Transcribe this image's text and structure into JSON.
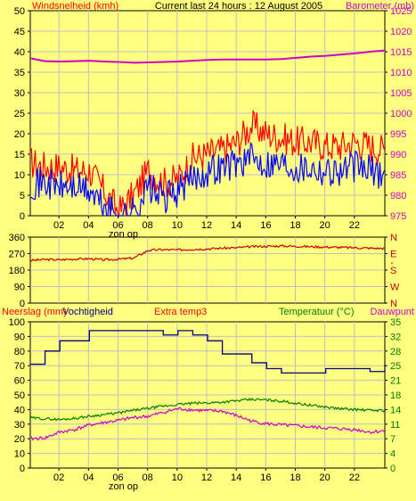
{
  "colors": {
    "background": "#ffff80",
    "grid": "#c0c0c0",
    "wind": "#ff0000",
    "gust": "#0000ff",
    "barometer": "#cc00cc",
    "winddir": "#cc0000",
    "humidity": "#000080",
    "temperature": "#008000",
    "dewpoint": "#cc00cc",
    "text": "#000000"
  },
  "header": {
    "left": "Windsnelheid (kmh)",
    "center": "Current last 24 hours : 12 August 2005",
    "right": "Barometer (mb)"
  },
  "bottom_header": {
    "rain": "Neerslag (mm)",
    "humidity": "Vochtigheid",
    "extra": "Extra temp3",
    "temp": "Temperatuur (°C)",
    "dew": "Dauwpunt"
  },
  "hour_labels": [
    "02",
    "04",
    "06",
    "08",
    "10",
    "12",
    "14",
    "16",
    "18",
    "20",
    "22"
  ],
  "sunrise_label": "zon op",
  "chart_data": [
    {
      "type": "line",
      "title": "Windsnelheid (kmh) / Barometer (mb)",
      "ylabel": "Windsnelheid (kmh)",
      "y2label": "Barometer (mb)",
      "ylim": [
        0,
        50
      ],
      "y2lim": [
        975,
        1025
      ],
      "yticks": [
        "0",
        "5",
        "10",
        "15",
        "20",
        "25",
        "30",
        "35",
        "40",
        "45",
        "50"
      ],
      "y2ticks": [
        "975",
        "980",
        "985",
        "990",
        "995",
        "1000",
        "1005",
        "1010",
        "1015",
        "1020",
        "1025"
      ],
      "x_hours": [
        0,
        1,
        2,
        3,
        4,
        5,
        6,
        7,
        8,
        9,
        10,
        11,
        12,
        13,
        14,
        15,
        16,
        17,
        18,
        19,
        20,
        21,
        22,
        23,
        24
      ],
      "series": [
        {
          "name": "Windsnelheid (kmh)",
          "values": [
            13,
            12,
            12,
            11,
            11,
            6,
            1,
            5,
            11,
            8,
            9,
            14,
            15,
            16,
            18,
            22,
            20,
            19,
            18,
            18,
            17,
            17,
            18,
            17,
            16
          ]
        },
        {
          "name": "gust",
          "values": [
            8,
            8,
            7,
            7,
            6,
            2,
            0,
            1,
            7,
            4,
            6,
            9,
            11,
            12,
            13,
            14,
            13,
            13,
            12,
            12,
            11,
            11,
            12,
            11,
            10
          ]
        },
        {
          "name": "Barometer (mb)",
          "values": [
            1013.4,
            1012.7,
            1012.6,
            1012.7,
            1012.8,
            1012.6,
            1012.5,
            1012.3,
            1012.4,
            1012.5,
            1012.6,
            1012.8,
            1013.0,
            1013.1,
            1013.1,
            1013.1,
            1013.1,
            1013.2,
            1013.5,
            1013.8,
            1014.0,
            1014.3,
            1014.6,
            1015.0,
            1015.3
          ]
        }
      ]
    },
    {
      "type": "line",
      "title": "Windrichting",
      "yticks": [
        "0",
        "90",
        "180",
        "270",
        "360"
      ],
      "y2ticks": [
        "N",
        "W",
        "S",
        "E",
        "N"
      ],
      "ylim": [
        0,
        360
      ],
      "x_hours": [
        0,
        1,
        2,
        3,
        4,
        5,
        6,
        7,
        8,
        9,
        10,
        11,
        12,
        13,
        14,
        15,
        16,
        17,
        18,
        19,
        20,
        21,
        22,
        23,
        24
      ],
      "series": [
        {
          "name": "direction",
          "values": [
            232,
            238,
            236,
            241,
            242,
            236,
            240,
            246,
            288,
            292,
            290,
            294,
            296,
            300,
            302,
            308,
            310,
            312,
            310,
            308,
            306,
            304,
            302,
            300,
            298
          ]
        }
      ]
    },
    {
      "type": "line",
      "title": "Neerslag / Vochtigheid / Temperatuur / Dauwpunt",
      "ylabel": "Neerslag (mm) Vochtigheid",
      "y2label": "Temperatuur (°C) Dauwpunt",
      "ylim": [
        0,
        100
      ],
      "y2lim": [
        0,
        35
      ],
      "yticks": [
        "0",
        "10",
        "20",
        "30",
        "40",
        "50",
        "60",
        "70",
        "80",
        "90",
        "100"
      ],
      "y2ticks": [
        "0",
        "4",
        "7",
        "11",
        "14",
        "18",
        "21",
        "25",
        "28",
        "32",
        "35"
      ],
      "x_hours": [
        0,
        1,
        2,
        3,
        4,
        5,
        6,
        7,
        8,
        9,
        10,
        11,
        12,
        13,
        14,
        15,
        16,
        17,
        18,
        19,
        20,
        21,
        22,
        23,
        24
      ],
      "series": [
        {
          "name": "Vochtigheid",
          "values": [
            71,
            80,
            87,
            87,
            94,
            94,
            94,
            94,
            94,
            91,
            94,
            91,
            87,
            78,
            78,
            72,
            68,
            65,
            65,
            65,
            68,
            68,
            68,
            66,
            71
          ]
        },
        {
          "name": "Temperatuur (°C)",
          "values": [
            12,
            11.8,
            11.6,
            11.9,
            12.4,
            12.8,
            13.2,
            13.8,
            14.3,
            14.8,
            15.2,
            15.5,
            15.6,
            15.8,
            16.1,
            16.4,
            16.3,
            16.0,
            15.5,
            15.0,
            14.6,
            14.2,
            14.0,
            13.8,
            13.8
          ]
        },
        {
          "name": "Dauwpunt",
          "values": [
            7,
            7.2,
            8.6,
            9.2,
            10.3,
            10.9,
            11.4,
            12.1,
            12.4,
            13.3,
            14.2,
            13.9,
            13.7,
            13.6,
            12.5,
            11.2,
            10.6,
            10.3,
            10.1,
            9.8,
            9.6,
            9.4,
            9.2,
            8.6,
            8.9
          ]
        }
      ]
    }
  ]
}
